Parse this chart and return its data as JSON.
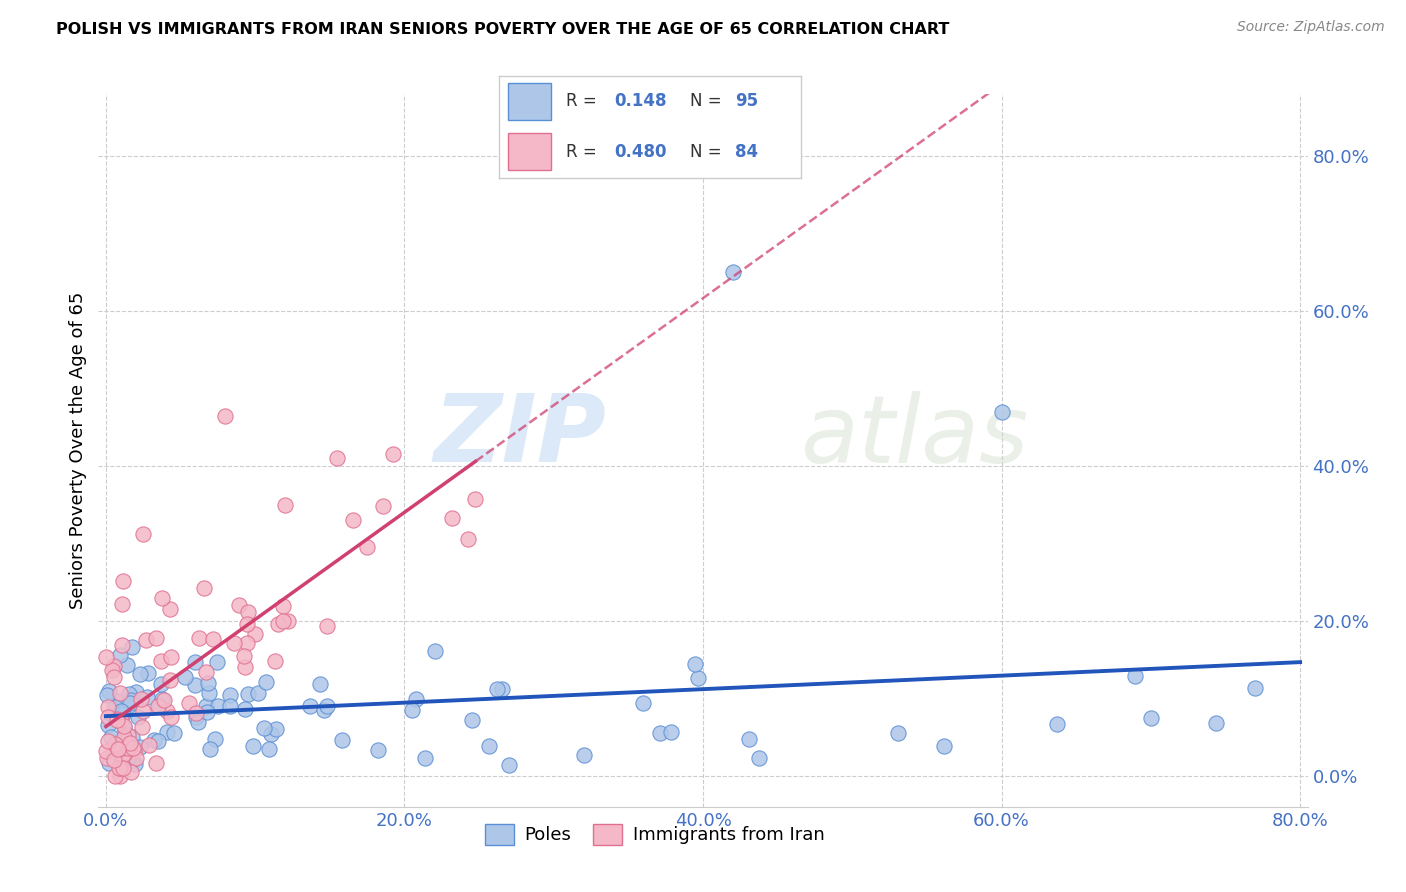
{
  "title": "POLISH VS IMMIGRANTS FROM IRAN SENIORS POVERTY OVER THE AGE OF 65 CORRELATION CHART",
  "source": "Source: ZipAtlas.com",
  "ylabel": "Seniors Poverty Over the Age of 65",
  "poles_color": "#aec6e8",
  "iran_color": "#f4b8c8",
  "poles_edge_color": "#5b8fd4",
  "iran_edge_color": "#e07090",
  "poles_line_color": "#2255bb",
  "iran_line_color": "#d04070",
  "poles_R": 0.148,
  "poles_N": 95,
  "iran_R": 0.48,
  "iran_N": 84,
  "watermark_zip": "ZIP",
  "watermark_atlas": "atlas",
  "background_color": "#ffffff",
  "grid_color": "#c8c8c8",
  "tick_color": "#4472c4",
  "xlim": [
    0.0,
    0.8
  ],
  "ylim": [
    -0.04,
    0.88
  ],
  "xticks": [
    0.0,
    0.2,
    0.4,
    0.6,
    0.8
  ],
  "yticks": [
    0.0,
    0.2,
    0.4,
    0.6,
    0.8
  ]
}
